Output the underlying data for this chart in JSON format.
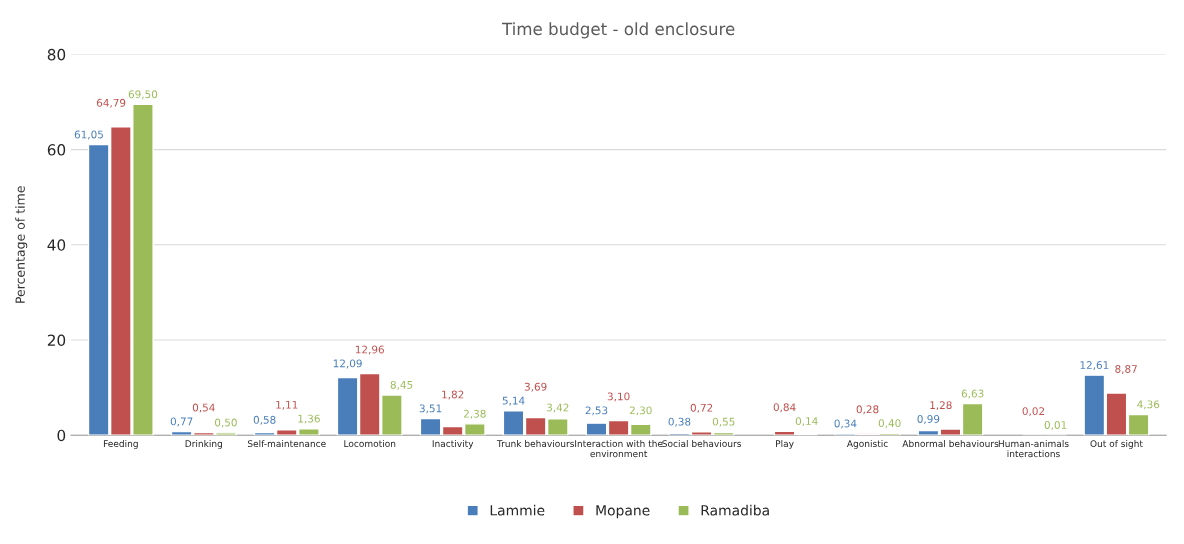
{
  "chart_data": {
    "type": "bar",
    "title": "Time budget - old enclosure",
    "ylabel": "Percentage of time",
    "categories": [
      "Feeding",
      "Drinking",
      "Self-maintenance",
      "Locomotion",
      "Inactivity",
      "Trunk behaviours",
      "Interaction with the\nenvironment",
      "Social behaviours",
      "Play",
      "Agonistic",
      "Abnormal behaviours",
      "Human-animals\ninteractions",
      "Out of sight"
    ],
    "series": [
      {
        "name": "Lammie",
        "color": "#4a7ebb",
        "values": [
          61.05,
          0.77,
          0.58,
          12.09,
          3.51,
          5.14,
          2.53,
          0.38,
          null,
          0.34,
          0.99,
          null,
          12.61
        ],
        "value_labels": [
          "61,05",
          "0,77",
          "0,58",
          "12,09",
          "3,51",
          "5,14",
          "2,53",
          "0,38",
          null,
          "0,34",
          "0,99",
          null,
          "12,61"
        ]
      },
      {
        "name": "Mopane",
        "color": "#c0504d",
        "values": [
          64.79,
          0.54,
          1.11,
          12.96,
          1.82,
          3.69,
          3.1,
          0.72,
          0.84,
          0.28,
          1.28,
          0.02,
          8.87
        ],
        "value_labels": [
          "64,79",
          "0,54",
          "1,11",
          "12,96",
          "1,82",
          "3,69",
          "3,10",
          "0,72",
          "0,84",
          "0,28",
          "1,28",
          "0,02",
          "8,87"
        ]
      },
      {
        "name": "Ramadiba",
        "color": "#9bbb59",
        "values": [
          69.5,
          0.5,
          1.36,
          8.45,
          2.38,
          3.42,
          2.3,
          0.55,
          0.14,
          0.4,
          6.63,
          0.01,
          4.36
        ],
        "value_labels": [
          "69,50",
          "0,50",
          "1,36",
          "8,45",
          "2,38",
          "3,42",
          "2,30",
          "0,55",
          "0,14",
          "0,40",
          "6,63",
          "0,01",
          "4,36"
        ]
      }
    ],
    "ylim": [
      0,
      80
    ],
    "yticks": [
      0,
      20,
      40,
      60,
      80
    ],
    "grid": "y",
    "legend": "bottom"
  }
}
